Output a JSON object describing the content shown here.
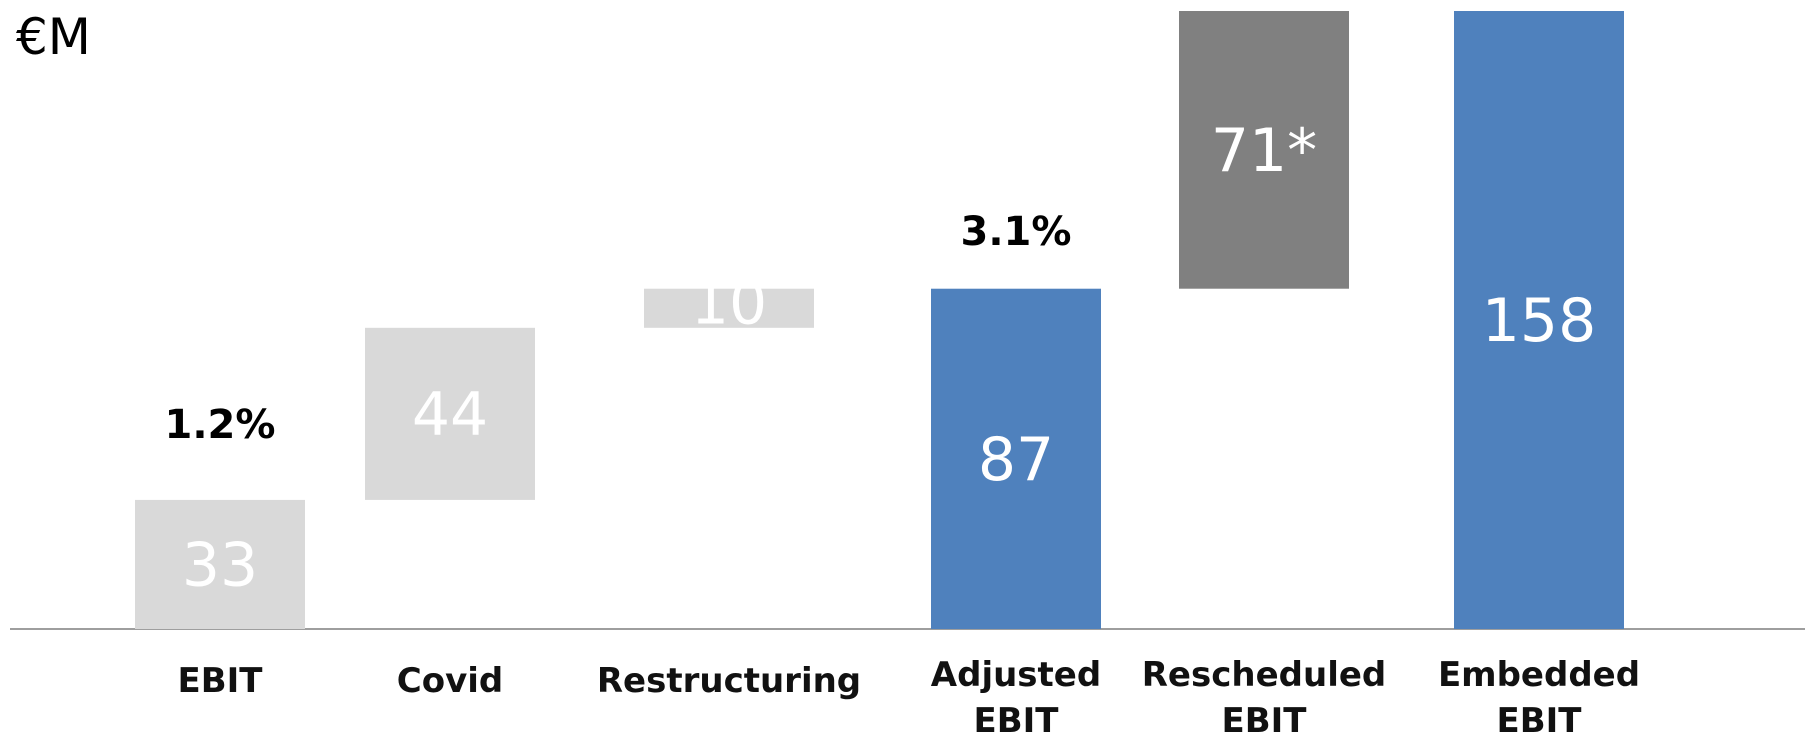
{
  "chart_data": {
    "type": "bar",
    "subtype": "waterfall",
    "unit_label": "€M",
    "categories": [
      "EBIT",
      "Covid",
      "Restructuring",
      "Adjusted EBIT",
      "Rescheduled EBIT",
      "Embedded EBIT"
    ],
    "category_lines": [
      [
        "EBIT"
      ],
      [
        "Covid"
      ],
      [
        "Restructuring"
      ],
      [
        "Adjusted",
        "EBIT"
      ],
      [
        "Rescheduled",
        "EBIT"
      ],
      [
        "Embedded",
        "EBIT"
      ]
    ],
    "values": [
      33,
      44,
      10,
      87,
      71,
      158
    ],
    "value_labels": [
      "33",
      "44",
      "10",
      "87",
      "71*",
      "158"
    ],
    "bar_kinds": [
      "increase",
      "increase",
      "increase",
      "total",
      "adjustment",
      "total"
    ],
    "bar_base": [
      0,
      33,
      77,
      0,
      87,
      0
    ],
    "margin_labels": [
      {
        "category": "EBIT",
        "text": "1.2%"
      },
      {
        "category": "Adjusted EBIT",
        "text": "3.1%"
      }
    ],
    "colors": {
      "increase": "#d9d9d9",
      "total": "#4f81bd",
      "adjustment": "#808080",
      "axis": "#7f7f7f"
    },
    "ylim": [
      0,
      158
    ],
    "grid": false,
    "legend": "none"
  }
}
